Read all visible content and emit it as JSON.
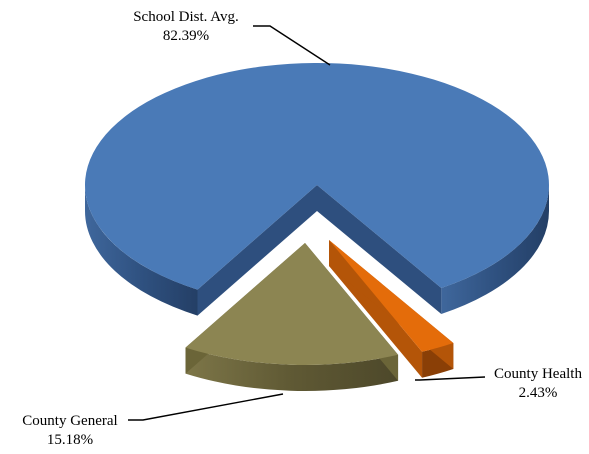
{
  "chart_data": {
    "type": "pie",
    "style": "3d-exploded",
    "slices": [
      {
        "label": "School Dist. Avg.",
        "value_text": "82.39%",
        "value": 82.39,
        "color": "#4a7ab7"
      },
      {
        "label": "County Health",
        "value_text": "2.43%",
        "value": 2.43,
        "color": "#e46c0a"
      },
      {
        "label": "County General",
        "value_text": "15.18%",
        "value": 15.18,
        "color": "#8c8552"
      }
    ],
    "legend": "none",
    "data_labels": "outside-with-leader-lines"
  }
}
